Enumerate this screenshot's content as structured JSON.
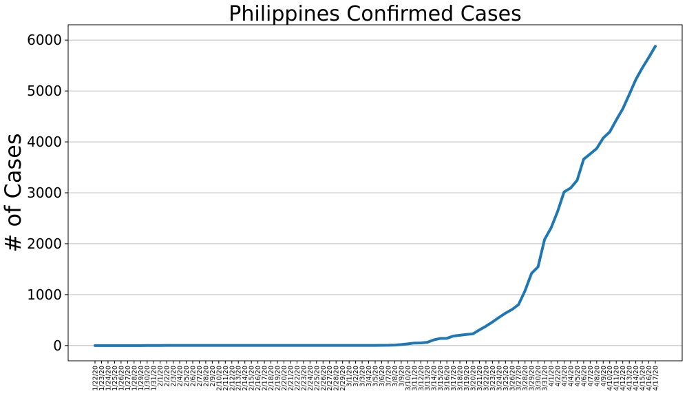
{
  "chart_data": {
    "type": "line",
    "title": "Philippines Confirmed Cases",
    "xlabel": "",
    "ylabel": "# of Cases",
    "ylim": [
      -300,
      6300
    ],
    "yticks": [
      0,
      1000,
      2000,
      3000,
      4000,
      5000,
      6000
    ],
    "grid": "horizontal",
    "color": "#1f77b4",
    "categories": [
      "1/22/20",
      "1/23/20",
      "1/24/20",
      "1/25/20",
      "1/26/20",
      "1/27/20",
      "1/28/20",
      "1/29/20",
      "1/30/20",
      "1/31/20",
      "2/1/20",
      "2/2/20",
      "2/3/20",
      "2/4/20",
      "2/5/20",
      "2/6/20",
      "2/7/20",
      "2/8/20",
      "2/9/20",
      "2/10/20",
      "2/11/20",
      "2/12/20",
      "2/13/20",
      "2/14/20",
      "2/15/20",
      "2/16/20",
      "2/17/20",
      "2/18/20",
      "2/19/20",
      "2/20/20",
      "2/21/20",
      "2/22/20",
      "2/23/20",
      "2/24/20",
      "2/25/20",
      "2/26/20",
      "2/27/20",
      "2/28/20",
      "2/29/20",
      "3/1/20",
      "3/2/20",
      "3/3/20",
      "3/4/20",
      "3/5/20",
      "3/6/20",
      "3/7/20",
      "3/8/20",
      "3/9/20",
      "3/10/20",
      "3/11/20",
      "3/12/20",
      "3/13/20",
      "3/14/20",
      "3/15/20",
      "3/16/20",
      "3/17/20",
      "3/18/20",
      "3/19/20",
      "3/20/20",
      "3/21/20",
      "3/22/20",
      "3/23/20",
      "3/24/20",
      "3/25/20",
      "3/26/20",
      "3/27/20",
      "3/28/20",
      "3/29/20",
      "3/30/20",
      "3/31/20",
      "4/1/20",
      "4/2/20",
      "4/3/20",
      "4/4/20",
      "4/5/20",
      "4/6/20",
      "4/7/20",
      "4/8/20",
      "4/9/20",
      "4/10/20",
      "4/11/20",
      "4/12/20",
      "4/13/20",
      "4/14/20",
      "4/15/20",
      "4/16/20",
      "4/17/20"
    ],
    "values": [
      0,
      0,
      0,
      0,
      0,
      0,
      0,
      0,
      1,
      1,
      1,
      2,
      2,
      2,
      3,
      3,
      3,
      3,
      3,
      3,
      3,
      3,
      3,
      3,
      3,
      3,
      3,
      3,
      3,
      3,
      3,
      3,
      3,
      3,
      3,
      3,
      3,
      3,
      3,
      3,
      3,
      3,
      3,
      3,
      5,
      6,
      10,
      20,
      33,
      49,
      52,
      64,
      111,
      140,
      142,
      187,
      202,
      217,
      230,
      307,
      380,
      462,
      552,
      636,
      707,
      803,
      1075,
      1418,
      1546,
      2084,
      2311,
      2633,
      3018,
      3094,
      3246,
      3660,
      3764,
      3870,
      4076,
      4195,
      4428,
      4648,
      4932,
      5223,
      5453,
      5660,
      5878
    ]
  }
}
